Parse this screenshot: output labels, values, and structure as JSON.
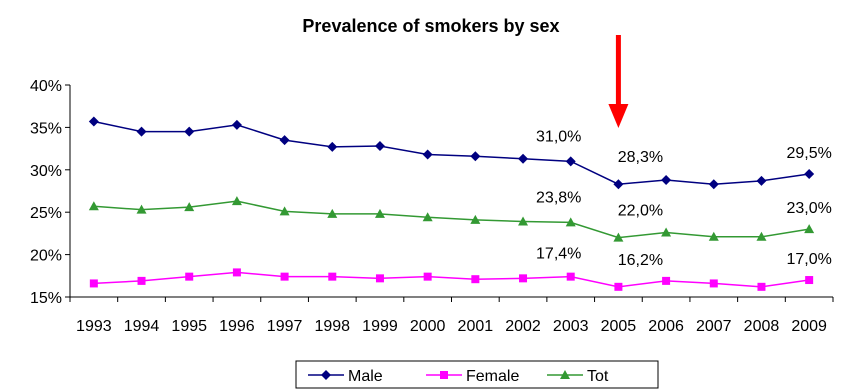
{
  "chart_data": {
    "type": "line",
    "title": "Prevalence of smokers by sex",
    "xlabel": "",
    "ylabel": "",
    "categories": [
      "1993",
      "1994",
      "1995",
      "1996",
      "1997",
      "1998",
      "1999",
      "2000",
      "2001",
      "2002",
      "2003",
      "2005",
      "2006",
      "2007",
      "2008",
      "2009"
    ],
    "ylim": [
      15,
      40
    ],
    "yticks": [
      "15%",
      "20%",
      "25%",
      "30%",
      "35%",
      "40%"
    ],
    "grid": false,
    "legend_position": "bottom",
    "series": [
      {
        "name": "Male",
        "color": "#000080",
        "marker": "diamond",
        "values": [
          35.7,
          34.5,
          34.5,
          35.3,
          33.5,
          32.7,
          32.8,
          31.8,
          31.6,
          31.3,
          31.0,
          28.3,
          28.8,
          28.3,
          28.7,
          29.5
        ]
      },
      {
        "name": "Female",
        "color": "#FF00FF",
        "marker": "square",
        "values": [
          16.6,
          16.9,
          17.4,
          17.9,
          17.4,
          17.4,
          17.2,
          17.4,
          17.1,
          17.2,
          17.4,
          16.2,
          16.9,
          16.6,
          16.2,
          17.0
        ]
      },
      {
        "name": "Tot",
        "color": "#339933",
        "marker": "triangle",
        "values": [
          25.7,
          25.3,
          25.6,
          26.3,
          25.1,
          24.8,
          24.8,
          24.4,
          24.1,
          23.9,
          23.8,
          22.0,
          22.6,
          22.1,
          22.1,
          23.0
        ]
      }
    ],
    "annotations": [
      {
        "text": "31,0%",
        "series": "Male",
        "category": "2003"
      },
      {
        "text": "28,3%",
        "series": "Male",
        "category": "2005"
      },
      {
        "text": "29,5%",
        "series": "Male",
        "category": "2009"
      },
      {
        "text": "23,8%",
        "series": "Tot",
        "category": "2003"
      },
      {
        "text": "22,0%",
        "series": "Tot",
        "category": "2005"
      },
      {
        "text": "23,0%",
        "series": "Tot",
        "category": "2009"
      },
      {
        "text": "17,4%",
        "series": "Female",
        "category": "2003"
      },
      {
        "text": "16,2%",
        "series": "Female",
        "category": "2005"
      },
      {
        "text": "17,0%",
        "series": "Female",
        "category": "2009"
      }
    ],
    "highlight_arrow": {
      "category": "2005",
      "color": "#FF0000"
    }
  }
}
